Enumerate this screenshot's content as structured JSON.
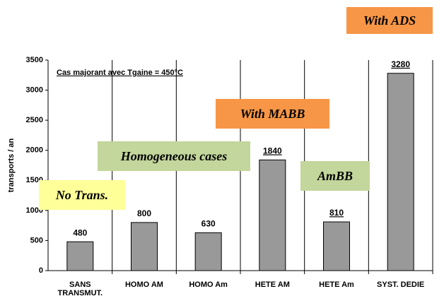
{
  "chart_data": {
    "type": "bar",
    "categories": [
      "SANS\nTRANSMUT.",
      "HOMO AM",
      "HOMO Am",
      "HETE AM",
      "HETE Am",
      "SYST. DEDIE"
    ],
    "values": [
      480,
      800,
      630,
      1840,
      810,
      3280
    ],
    "color": "#999999",
    "y_label": "transports / an",
    "ylim": [
      0,
      3500
    ],
    "yticks": [
      0,
      500,
      1000,
      1500,
      2000,
      2500,
      3000,
      3500
    ],
    "grid": false,
    "subtitle": "Cas majorant avec Tgaine = 450°C",
    "annotations": [
      {
        "text": "With ADS",
        "color": "#f79646"
      },
      {
        "text": "With MABB",
        "color": "#f79646"
      },
      {
        "text": "Homogeneous cases",
        "color": "#c3d69b"
      },
      {
        "text": "AmBB",
        "color": "#c3d69b"
      },
      {
        "text": "No Trans.",
        "color": "#ffff99"
      }
    ]
  }
}
